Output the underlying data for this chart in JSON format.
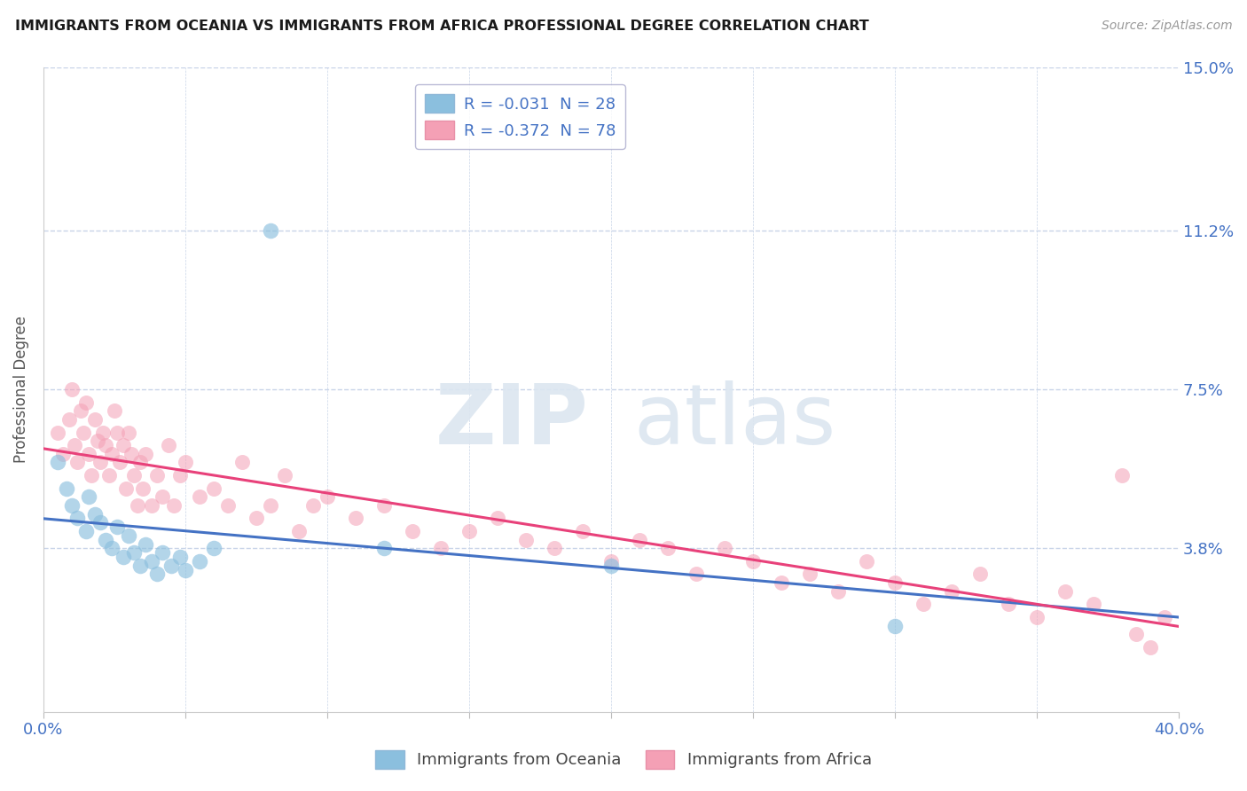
{
  "title": "IMMIGRANTS FROM OCEANIA VS IMMIGRANTS FROM AFRICA PROFESSIONAL DEGREE CORRELATION CHART",
  "source": "Source: ZipAtlas.com",
  "xlabel_oceania": "Immigrants from Oceania",
  "xlabel_africa": "Immigrants from Africa",
  "ylabel": "Professional Degree",
  "xlim": [
    0.0,
    0.4
  ],
  "ylim": [
    0.0,
    0.15
  ],
  "ytick_vals": [
    0.038,
    0.075,
    0.112,
    0.15
  ],
  "ytick_labels": [
    "3.8%",
    "7.5%",
    "11.2%",
    "15.0%"
  ],
  "xtick_positions": [
    0.0,
    0.05,
    0.1,
    0.15,
    0.2,
    0.25,
    0.3,
    0.35,
    0.4
  ],
  "xtick_labels": [
    "0.0%",
    "",
    "",
    "",
    "",
    "",
    "",
    "",
    "40.0%"
  ],
  "legend_oceania": "R = -0.031  N = 28",
  "legend_africa": "R = -0.372  N = 78",
  "color_oceania": "#8bbfde",
  "color_africa": "#f4a0b5",
  "line_color_oceania": "#4472c4",
  "line_color_africa": "#e8417a",
  "background_color": "#ffffff",
  "grid_color": "#c8d4e8",
  "watermark_zip": "ZIP",
  "watermark_atlas": "atlas",
  "oceania_x": [
    0.005,
    0.008,
    0.01,
    0.012,
    0.015,
    0.016,
    0.018,
    0.02,
    0.022,
    0.024,
    0.026,
    0.028,
    0.03,
    0.032,
    0.034,
    0.036,
    0.038,
    0.04,
    0.042,
    0.045,
    0.048,
    0.05,
    0.055,
    0.06,
    0.08,
    0.12,
    0.2,
    0.3
  ],
  "oceania_y": [
    0.058,
    0.052,
    0.048,
    0.045,
    0.042,
    0.05,
    0.046,
    0.044,
    0.04,
    0.038,
    0.043,
    0.036,
    0.041,
    0.037,
    0.034,
    0.039,
    0.035,
    0.032,
    0.037,
    0.034,
    0.036,
    0.033,
    0.035,
    0.038,
    0.112,
    0.038,
    0.034,
    0.02
  ],
  "africa_x": [
    0.005,
    0.007,
    0.009,
    0.01,
    0.011,
    0.012,
    0.013,
    0.014,
    0.015,
    0.016,
    0.017,
    0.018,
    0.019,
    0.02,
    0.021,
    0.022,
    0.023,
    0.024,
    0.025,
    0.026,
    0.027,
    0.028,
    0.029,
    0.03,
    0.031,
    0.032,
    0.033,
    0.034,
    0.035,
    0.036,
    0.038,
    0.04,
    0.042,
    0.044,
    0.046,
    0.048,
    0.05,
    0.055,
    0.06,
    0.065,
    0.07,
    0.075,
    0.08,
    0.085,
    0.09,
    0.095,
    0.1,
    0.11,
    0.12,
    0.13,
    0.14,
    0.15,
    0.16,
    0.17,
    0.18,
    0.19,
    0.2,
    0.21,
    0.22,
    0.23,
    0.24,
    0.25,
    0.26,
    0.27,
    0.28,
    0.29,
    0.3,
    0.31,
    0.32,
    0.33,
    0.34,
    0.35,
    0.36,
    0.37,
    0.38,
    0.385,
    0.39,
    0.395
  ],
  "africa_y": [
    0.065,
    0.06,
    0.068,
    0.075,
    0.062,
    0.058,
    0.07,
    0.065,
    0.072,
    0.06,
    0.055,
    0.068,
    0.063,
    0.058,
    0.065,
    0.062,
    0.055,
    0.06,
    0.07,
    0.065,
    0.058,
    0.062,
    0.052,
    0.065,
    0.06,
    0.055,
    0.048,
    0.058,
    0.052,
    0.06,
    0.048,
    0.055,
    0.05,
    0.062,
    0.048,
    0.055,
    0.058,
    0.05,
    0.052,
    0.048,
    0.058,
    0.045,
    0.048,
    0.055,
    0.042,
    0.048,
    0.05,
    0.045,
    0.048,
    0.042,
    0.038,
    0.042,
    0.045,
    0.04,
    0.038,
    0.042,
    0.035,
    0.04,
    0.038,
    0.032,
    0.038,
    0.035,
    0.03,
    0.032,
    0.028,
    0.035,
    0.03,
    0.025,
    0.028,
    0.032,
    0.025,
    0.022,
    0.028,
    0.025,
    0.055,
    0.018,
    0.015,
    0.022
  ]
}
